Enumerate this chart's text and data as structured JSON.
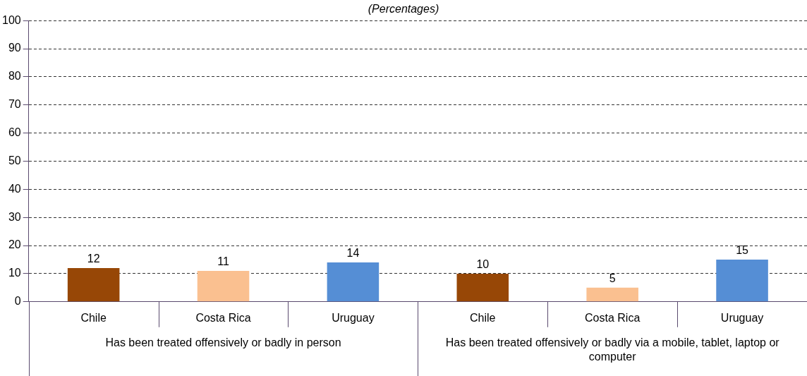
{
  "chart_data": {
    "type": "bar",
    "title": "(Percentages)",
    "categories": [
      "Chile",
      "Costa Rica",
      "Uruguay",
      "Chile",
      "Costa Rica",
      "Uruguay"
    ],
    "values": [
      12,
      11,
      14,
      10,
      5,
      15
    ],
    "colors": [
      "#974706",
      "#fac090",
      "#558ed5",
      "#974706",
      "#fac090",
      "#558ed5"
    ],
    "ylim": [
      0,
      100
    ],
    "yticks": [
      0,
      10,
      20,
      30,
      40,
      50,
      60,
      70,
      80,
      90,
      100
    ],
    "grid": "y",
    "data_labels": true,
    "legend": false,
    "annotations": [
      "Has been treated offensively or badly in person",
      "Has been treated offensively or badly via a mobile, tablet, laptop or computer"
    ]
  }
}
